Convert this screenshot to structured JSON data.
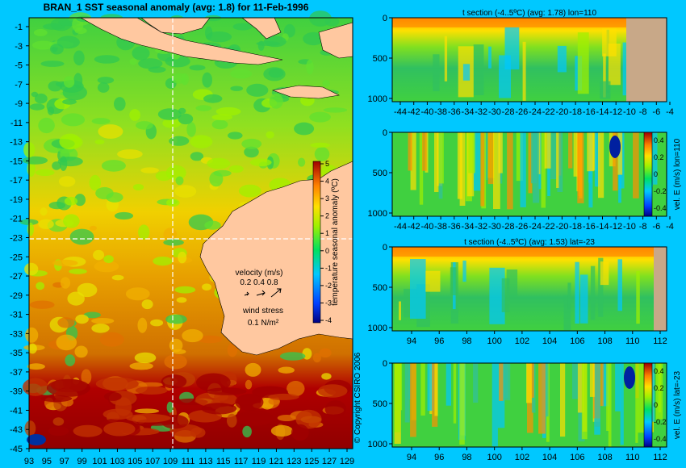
{
  "main_title": "BRAN_1  SST seasonal anomaly  (avg: 1.8) for 11-Feb-1996",
  "copyright": "© Copyright CSIRO 2006",
  "colors": {
    "background": "#00c8ff",
    "land_map": "#ffc8a0",
    "land_section": "#c8a888",
    "crosshair": "#ffffff",
    "vector": "#ff00ff"
  },
  "map": {
    "title": "BRAN_1  SST seasonal anomaly  (avg: 1.8) for 11-Feb-1996",
    "y_ticks": [
      "-1",
      "-3",
      "-5",
      "-7",
      "-9",
      "-11",
      "-13",
      "-15",
      "-17",
      "-19",
      "-21",
      "-23",
      "-25",
      "-27",
      "-29",
      "-31",
      "-33",
      "-35",
      "-37",
      "-39",
      "-41",
      "-43",
      "-45"
    ],
    "x_ticks": [
      "93",
      "95",
      "97",
      "99",
      "101",
      "103",
      "105",
      "107",
      "109",
      "111",
      "113",
      "115",
      "117",
      "119",
      "121",
      "123",
      "125",
      "127",
      "129"
    ],
    "colorbar": {
      "label": "temperature seasonal anomaly  (ºC)",
      "ticks": [
        "5",
        "4",
        "3",
        "2",
        "1",
        "0",
        "-1",
        "-2",
        "-3",
        "-4"
      ]
    },
    "legend": {
      "velocity_label": "velocity (m/s)",
      "velocity_values": "0.2 0.4 0.8",
      "wind_label": "wind stress",
      "wind_value": "0.1 N/m²"
    }
  },
  "chart_data": [
    {
      "type": "heatmap",
      "title": "BRAN_1  SST seasonal anomaly  (avg: 1.8) for 11-Feb-1996",
      "x_range": [
        93,
        130
      ],
      "y_range": [
        -45,
        0
      ],
      "colorbar_range": [
        -4,
        5
      ],
      "crosshair": {
        "lon": 110,
        "lat": -23
      }
    },
    {
      "type": "heatmap",
      "title": "t section (-4..5ºC) (avg: 1.78) lon=110",
      "x_ticks": [
        "-44",
        "-42",
        "-40",
        "-38",
        "-36",
        "-34",
        "-32",
        "-30",
        "-28",
        "-26",
        "-24",
        "-22",
        "-20",
        "-18",
        "-16",
        "-14",
        "-12",
        "-10",
        "-8",
        "-6",
        "-4"
      ],
      "y_ticks": [
        "0",
        "500",
        "1000"
      ]
    },
    {
      "type": "heatmap",
      "title": "",
      "x_ticks": [
        "-44",
        "-42",
        "-40",
        "-38",
        "-36",
        "-34",
        "-32",
        "-30",
        "-28",
        "-26",
        "-24",
        "-22",
        "-20",
        "-18",
        "-16",
        "-14",
        "-12",
        "-10",
        "-8",
        "-6",
        "-4"
      ],
      "y_ticks": [
        "0",
        "500",
        "1000"
      ],
      "colorbar_label": "vel. E (m/s) lon=110",
      "colorbar_ticks": [
        "0.4",
        "0.2",
        "0",
        "-0.2",
        "-0.4"
      ]
    },
    {
      "type": "heatmap",
      "title": "t section (-4..5ºC) (avg: 1.53) lat=-23",
      "x_ticks": [
        "94",
        "96",
        "98",
        "100",
        "102",
        "104",
        "106",
        "108",
        "110",
        "112"
      ],
      "y_ticks": [
        "0",
        "500",
        "1000"
      ]
    },
    {
      "type": "heatmap",
      "title": "",
      "x_ticks": [
        "94",
        "96",
        "98",
        "100",
        "102",
        "104",
        "106",
        "108",
        "110",
        "112"
      ],
      "y_ticks": [
        "0",
        "500",
        "1000"
      ],
      "colorbar_label": "vel. E (m/s) lat=-23",
      "colorbar_ticks": [
        "0.4",
        "0.2",
        "0",
        "-0.2",
        "-0.4"
      ]
    }
  ]
}
